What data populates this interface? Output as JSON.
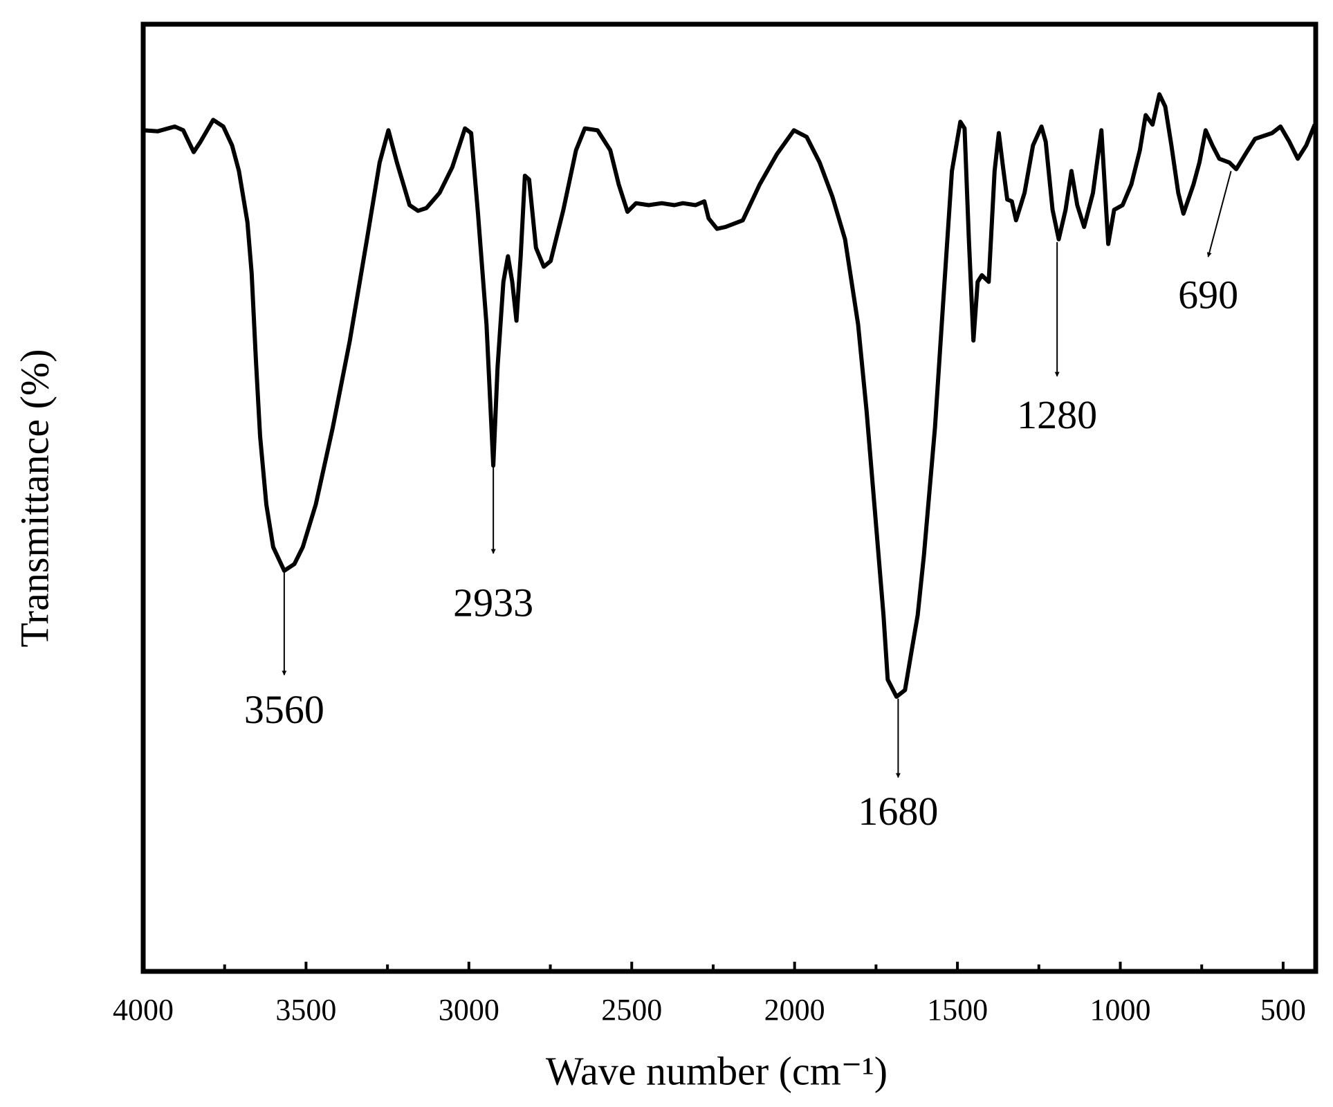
{
  "chart_data": {
    "type": "line",
    "xlabel": "Wave number (cm⁻¹)",
    "ylabel": "Transmittance (%)",
    "xlim": [
      4000,
      400
    ],
    "ylim": [
      0,
      100
    ],
    "xticks": [
      4000,
      3500,
      3000,
      2500,
      2000,
      1500,
      1000,
      500
    ],
    "xminor_ticks": [
      3750,
      3250,
      2750,
      2250,
      1750,
      1250,
      750
    ],
    "color": "#000000",
    "x": [
      4000,
      3955,
      3903,
      3877,
      3845,
      3824,
      3785,
      3754,
      3727,
      3706,
      3680,
      3667,
      3654,
      3641,
      3622,
      3601,
      3567,
      3536,
      3510,
      3470,
      3418,
      3366,
      3313,
      3274,
      3247,
      3221,
      3182,
      3156,
      3130,
      3090,
      3051,
      3012,
      2993,
      2972,
      2946,
      2925,
      2912,
      2894,
      2880,
      2867,
      2854,
      2841,
      2828,
      2815,
      2794,
      2770,
      2749,
      2710,
      2671,
      2644,
      2605,
      2566,
      2540,
      2513,
      2487,
      2448,
      2408,
      2369,
      2343,
      2304,
      2277,
      2264,
      2238,
      2212,
      2159,
      2107,
      2054,
      2002,
      1963,
      1923,
      1884,
      1845,
      1805,
      1779,
      1753,
      1727,
      1714,
      1687,
      1661,
      1640,
      1622,
      1603,
      1569,
      1543,
      1517,
      1491,
      1478,
      1465,
      1451,
      1438,
      1425,
      1404,
      1386,
      1373,
      1360,
      1347,
      1333,
      1320,
      1294,
      1268,
      1242,
      1229,
      1208,
      1189,
      1168,
      1150,
      1132,
      1111,
      1084,
      1058,
      1037,
      1019,
      993,
      966,
      940,
      922,
      901,
      880,
      862,
      843,
      822,
      806,
      775,
      757,
      738,
      717,
      696,
      665,
      644,
      612,
      586,
      534,
      508,
      481,
      455,
      429,
      403
    ],
    "values": [
      88.8,
      88.7,
      89.2,
      88.8,
      86.5,
      87.6,
      89.9,
      89.2,
      87.2,
      84.5,
      79.1,
      73.7,
      64.6,
      56.5,
      49.3,
      44.8,
      42.3,
      43.0,
      44.8,
      49.3,
      57.4,
      66.5,
      77.3,
      85.4,
      88.8,
      85.4,
      80.9,
      80.3,
      80.6,
      82.2,
      84.9,
      89.0,
      88.5,
      80.0,
      68.3,
      53.4,
      63.8,
      72.8,
      75.5,
      72.8,
      68.7,
      75.5,
      84.0,
      83.6,
      76.4,
      74.4,
      75.0,
      80.4,
      86.7,
      89.0,
      88.8,
      86.7,
      83.1,
      80.2,
      81.1,
      80.9,
      81.1,
      80.9,
      81.1,
      80.9,
      81.3,
      79.5,
      78.4,
      78.6,
      79.3,
      83.1,
      86.3,
      88.8,
      88.1,
      85.4,
      81.8,
      77.3,
      68.3,
      59.2,
      48.4,
      37.6,
      30.8,
      29.0,
      29.7,
      34.0,
      37.6,
      43.9,
      57.4,
      71.0,
      84.5,
      89.7,
      89.0,
      77.3,
      66.6,
      72.8,
      73.5,
      72.8,
      84.5,
      88.5,
      84.9,
      81.5,
      81.3,
      79.3,
      82.2,
      87.2,
      89.2,
      87.6,
      80.4,
      77.3,
      80.4,
      84.5,
      80.9,
      78.6,
      82.2,
      88.8,
      76.8,
      80.4,
      80.9,
      83.1,
      86.7,
      90.4,
      89.4,
      92.6,
      91.3,
      87.2,
      82.2,
      80.0,
      83.1,
      85.4,
      88.8,
      87.2,
      85.8,
      85.4,
      84.7,
      86.5,
      87.9,
      88.5,
      89.2,
      87.6,
      85.8,
      87.2,
      89.4
    ],
    "annotations": [
      {
        "text": "3560",
        "x": 3567,
        "y": 42.1
      },
      {
        "text": "2933",
        "x": 2925,
        "y": 53.4
      },
      {
        "text": "1680",
        "x": 1682,
        "y": 28.8
      },
      {
        "text": "1280",
        "x": 1194,
        "y": 77.0
      },
      {
        "text": "690",
        "x": 660,
        "y": 84.5
      }
    ]
  }
}
